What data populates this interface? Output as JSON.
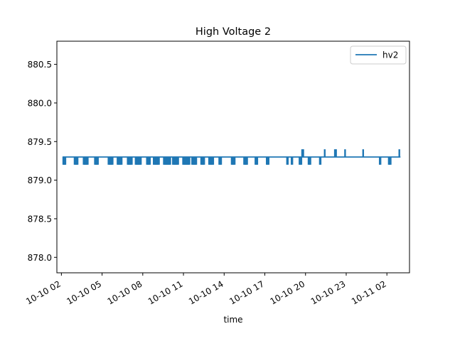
{
  "chart_data": {
    "type": "line",
    "title": "High Voltage 2",
    "xlabel": "time",
    "ylabel": "",
    "xlim": [
      "2019-10-10 01:40",
      "2019-10-11 03:40"
    ],
    "ylim": [
      877.8,
      880.8
    ],
    "x_ticks": [
      "10-10 02",
      "10-10 05",
      "10-10 08",
      "10-10 11",
      "10-10 14",
      "10-10 17",
      "10-10 20",
      "10-10 23",
      "10-11 02"
    ],
    "y_ticks": [
      "878.0",
      "878.5",
      "879.0",
      "879.5",
      "880.0",
      "880.5"
    ],
    "legend_position": "top-right",
    "baseline": 879.3,
    "series": [
      {
        "name": "hv2",
        "color": "#1f77b4",
        "start": "2019-10-10 02:05",
        "end": "2019-10-11 03:00",
        "value": 879.3,
        "dips_to": 879.2,
        "spikes_to": 879.4,
        "dip_times": [
          "2019-10-10 02:10",
          "2019-10-10 02:13",
          "2019-10-10 02:16",
          "2019-10-10 03:00",
          "2019-10-10 03:05",
          "2019-10-10 03:10",
          "2019-10-10 03:40",
          "2019-10-10 03:45",
          "2019-10-10 03:50",
          "2019-10-10 03:55",
          "2019-10-10 04:30",
          "2019-10-10 04:35",
          "2019-10-10 04:40",
          "2019-10-10 05:30",
          "2019-10-10 05:35",
          "2019-10-10 05:40",
          "2019-10-10 05:45",
          "2019-10-10 06:10",
          "2019-10-10 06:15",
          "2019-10-10 06:20",
          "2019-10-10 06:25",
          "2019-10-10 06:55",
          "2019-10-10 07:00",
          "2019-10-10 07:05",
          "2019-10-10 07:10",
          "2019-10-10 07:30",
          "2019-10-10 07:35",
          "2019-10-10 07:40",
          "2019-10-10 07:45",
          "2019-10-10 07:50",
          "2019-10-10 08:20",
          "2019-10-10 08:25",
          "2019-10-10 08:30",
          "2019-10-10 08:50",
          "2019-10-10 08:55",
          "2019-10-10 09:00",
          "2019-10-10 09:05",
          "2019-10-10 09:10",
          "2019-10-10 09:35",
          "2019-10-10 09:40",
          "2019-10-10 09:45",
          "2019-10-10 09:50",
          "2019-10-10 09:55",
          "2019-10-10 10:00",
          "2019-10-10 10:15",
          "2019-10-10 10:20",
          "2019-10-10 10:25",
          "2019-10-10 10:30",
          "2019-10-10 10:35",
          "2019-10-10 11:00",
          "2019-10-10 11:05",
          "2019-10-10 11:10",
          "2019-10-10 11:15",
          "2019-10-10 11:20",
          "2019-10-10 11:25",
          "2019-10-10 11:40",
          "2019-10-10 11:45",
          "2019-10-10 11:50",
          "2019-10-10 11:55",
          "2019-10-10 12:20",
          "2019-10-10 12:25",
          "2019-10-10 12:30",
          "2019-10-10 12:55",
          "2019-10-10 13:00",
          "2019-10-10 13:05",
          "2019-10-10 13:10",
          "2019-10-10 13:40",
          "2019-10-10 13:45",
          "2019-10-10 14:35",
          "2019-10-10 14:40",
          "2019-10-10 14:45",
          "2019-10-10 15:30",
          "2019-10-10 15:35",
          "2019-10-10 15:40",
          "2019-10-10 16:20",
          "2019-10-10 16:25",
          "2019-10-10 17:10",
          "2019-10-10 17:15",
          "2019-10-10 18:40",
          "2019-10-10 19:00",
          "2019-10-10 19:35",
          "2019-10-10 19:40",
          "2019-10-10 20:15",
          "2019-10-10 20:20",
          "2019-10-10 21:05",
          "2019-10-11 01:30",
          "2019-10-11 02:10",
          "2019-10-11 02:15"
        ],
        "spike_times": [
          "2019-10-10 19:45",
          "2019-10-10 19:50",
          "2019-10-10 21:25",
          "2019-10-10 22:10",
          "2019-10-10 22:15",
          "2019-10-10 22:55",
          "2019-10-11 00:15",
          "2019-10-11 02:55"
        ]
      }
    ]
  }
}
